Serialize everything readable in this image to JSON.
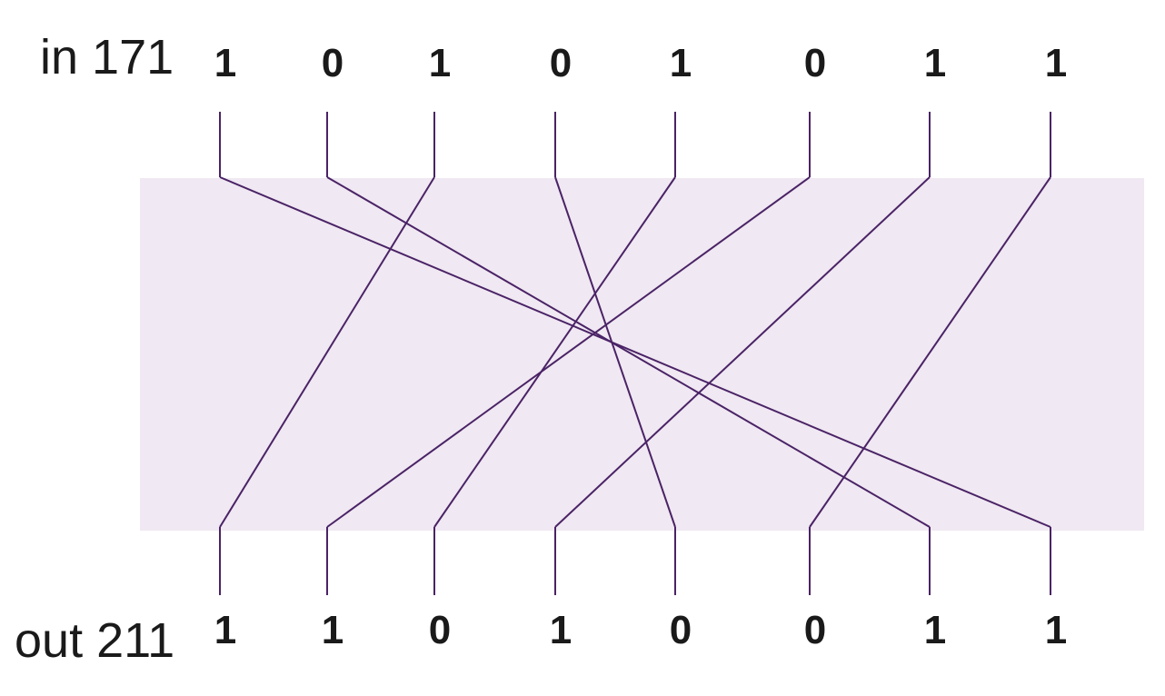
{
  "input": {
    "label": "in 171",
    "bits": [
      "1",
      "0",
      "1",
      "0",
      "1",
      "0",
      "1",
      "1"
    ]
  },
  "output": {
    "label": "out 211",
    "bits": [
      "1",
      "1",
      "0",
      "1",
      "0",
      "0",
      "1",
      "1"
    ]
  },
  "permutation": [
    7,
    6,
    0,
    4,
    2,
    1,
    3,
    5
  ],
  "colors": {
    "box": "#f0e8f2",
    "wire": "#4a2366",
    "text": "#1a1a1a"
  }
}
